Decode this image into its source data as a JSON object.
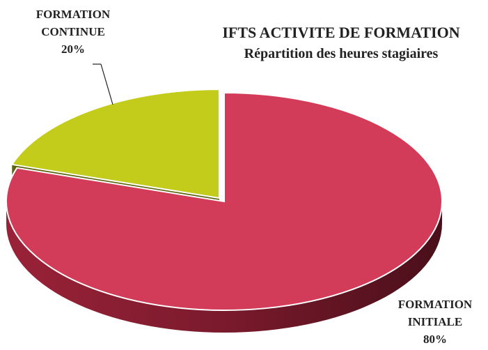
{
  "chart_data": {
    "type": "pie3d",
    "title": "IFTS ACTIVITE DE FORMATION",
    "subtitle": "Répartition des heures stagiaires",
    "categories": [
      "FORMATION INITIALE",
      "FORMATION CONTINUE"
    ],
    "values": [
      80,
      20
    ],
    "value_labels": [
      "80%",
      "20%"
    ],
    "colors": [
      "#d23c58",
      "#c3cc1b"
    ],
    "explode": [
      false,
      true
    ]
  }
}
